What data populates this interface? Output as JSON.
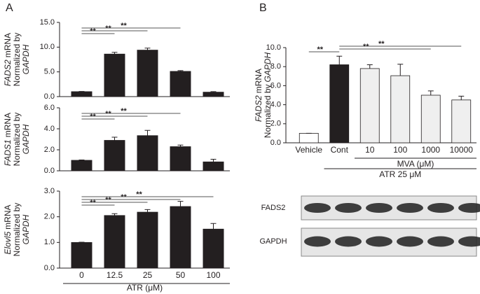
{
  "panel_labels": [
    "A",
    "B"
  ],
  "chart_data": [
    {
      "type": "bar",
      "y_label": [
        [
          {
            "text": "FADS2",
            "italic": true
          },
          {
            "text": "mRNA"
          }
        ],
        [
          {
            "text": "Normalized by"
          }
        ],
        [
          {
            "text": "GAPDH",
            "italic": true
          }
        ]
      ],
      "values": [
        1.0,
        8.6,
        9.4,
        5.1,
        0.9
      ],
      "errors": [
        0.05,
        0.35,
        0.4,
        0.15,
        0.1
      ],
      "color": "#231f20",
      "ylim": [
        0,
        15
      ],
      "yticks": [
        {
          "value": 0,
          "label": "0.0"
        },
        {
          "value": 5,
          "label": "5.0"
        },
        {
          "value": 10,
          "label": "10.0"
        },
        {
          "value": 15,
          "label": "15.0"
        }
      ],
      "significance": [
        {
          "label": "**",
          "from": 0,
          "to": 1
        },
        {
          "label": "**",
          "from": 0,
          "to": 2
        },
        {
          "label": "**",
          "from": 0,
          "to": 3
        }
      ]
    },
    {
      "type": "bar",
      "y_label": [
        [
          {
            "text": "FADS1",
            "italic": true
          },
          {
            "text": "mRNA"
          }
        ],
        [
          {
            "text": "Normalized by"
          }
        ],
        [
          {
            "text": "GAPDH",
            "italic": true
          }
        ]
      ],
      "values": [
        1.0,
        2.9,
        3.35,
        2.3,
        0.85
      ],
      "errors": [
        0.03,
        0.3,
        0.5,
        0.15,
        0.25
      ],
      "color": "#231f20",
      "ylim": [
        0,
        6
      ],
      "yticks": [
        {
          "value": 0,
          "label": "0.0"
        },
        {
          "value": 2,
          "label": "2.0"
        },
        {
          "value": 4,
          "label": "4.0"
        },
        {
          "value": 6,
          "label": "6.0"
        }
      ],
      "significance": [
        {
          "label": "**",
          "from": 0,
          "to": 1
        },
        {
          "label": "**",
          "from": 0,
          "to": 2
        },
        {
          "label": "**",
          "from": 0,
          "to": 3
        }
      ]
    },
    {
      "type": "bar",
      "y_label": [
        [
          {
            "text": "Elovl5",
            "italic": true
          },
          {
            "text": "mRNA"
          }
        ],
        [
          {
            "text": "Normalized by"
          }
        ],
        [
          {
            "text": "GAPDH",
            "italic": true
          }
        ]
      ],
      "categories": [
        "0",
        "12.5",
        "25",
        "50",
        "100"
      ],
      "x_label": "ATR (μM)",
      "values": [
        1.0,
        2.05,
        2.18,
        2.4,
        1.52
      ],
      "errors": [
        0.01,
        0.07,
        0.1,
        0.2,
        0.22
      ],
      "color": "#231f20",
      "ylim": [
        0,
        3
      ],
      "yticks": [
        {
          "value": 0,
          "label": "0.0"
        },
        {
          "value": 1,
          "label": "1.0"
        },
        {
          "value": 2,
          "label": "2.0"
        },
        {
          "value": 3,
          "label": "3.0"
        }
      ],
      "significance": [
        {
          "label": "**",
          "from": 0,
          "to": 1
        },
        {
          "label": "**",
          "from": 0,
          "to": 2
        },
        {
          "label": "**",
          "from": 0,
          "to": 3
        },
        {
          "label": "**",
          "from": 0,
          "to": 4
        }
      ]
    },
    {
      "type": "bar",
      "y_label": [
        [
          {
            "text": "FADS2",
            "italic": true
          },
          {
            "text": "mRNA"
          }
        ],
        [
          {
            "text": "Normalized by"
          },
          {
            "text": "GAPDH",
            "italic": true
          }
        ]
      ],
      "categories": [
        "Vehicle",
        "Cont",
        "10",
        "100",
        "1000",
        "10000"
      ],
      "values": [
        1.0,
        8.2,
        7.8,
        7.05,
        5.0,
        4.5
      ],
      "errors": [
        0,
        0.9,
        0.4,
        1.2,
        0.45,
        0.4
      ],
      "colors": [
        "#ffffff",
        "#231f20",
        "#efefef",
        "#efefef",
        "#efefef",
        "#efefef"
      ],
      "ylim": [
        0,
        10
      ],
      "yticks": [
        {
          "value": 0,
          "label": "0.0"
        },
        {
          "value": 2,
          "label": "2.0"
        },
        {
          "value": 4,
          "label": "4.0"
        },
        {
          "value": 6,
          "label": "6.0"
        },
        {
          "value": 8,
          "label": "8.0"
        },
        {
          "value": 10,
          "label": "10.0"
        }
      ],
      "significance": [
        {
          "label": "**",
          "from": 0,
          "to": 1
        },
        {
          "label": "**",
          "from": 1,
          "to": 4
        },
        {
          "label": "**",
          "from": 1,
          "to": 5
        }
      ],
      "group_labels": [
        {
          "text": "MVA (μM)",
          "from": 2,
          "to": 5
        },
        {
          "text": "ATR 25 μM",
          "from": 1,
          "to": 5
        }
      ]
    }
  ],
  "blot": {
    "rows": [
      "FADS2",
      "GAPDH"
    ]
  }
}
